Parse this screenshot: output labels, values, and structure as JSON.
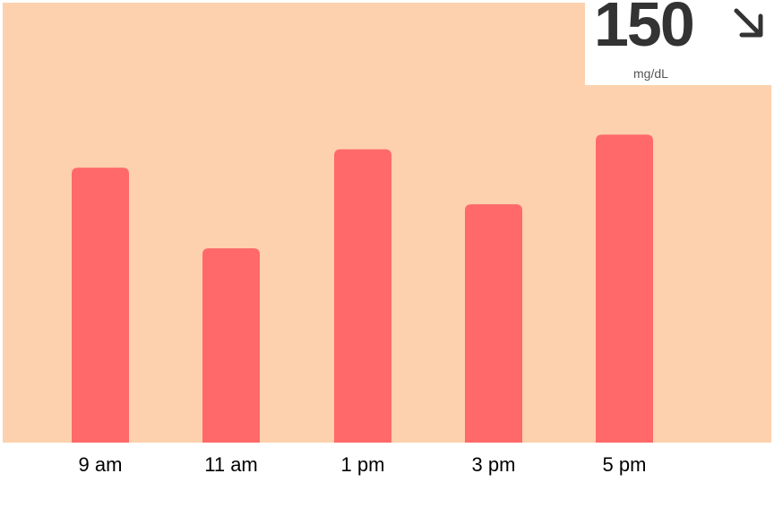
{
  "chart_data": {
    "type": "bar",
    "categories": [
      "9 am",
      "11 am",
      "1 pm",
      "3 pm",
      "5 pm"
    ],
    "values": [
      150,
      106,
      160,
      130,
      168
    ],
    "ylim": [
      0,
      240
    ],
    "grid": false,
    "bar_color": "#ff6969",
    "background_color": "#fdd1ad"
  },
  "reading": {
    "value": "150",
    "unit": "mg/dL",
    "trend_icon": "arrow-down-right-icon"
  }
}
